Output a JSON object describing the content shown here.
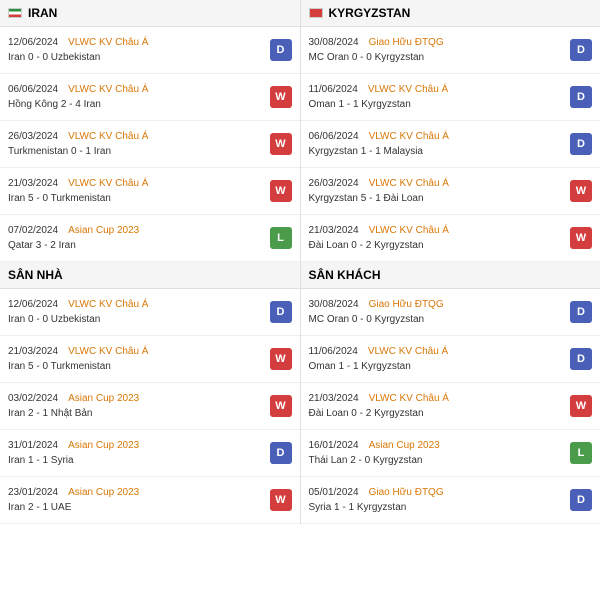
{
  "colors": {
    "d": "#4a5fb8",
    "w": "#d43d3d",
    "l": "#4a9b4a",
    "comp": "#d97706"
  },
  "badges": {
    "D": "D",
    "W": "W",
    "L": "L"
  },
  "flags": {
    "iran": {
      "bg": "linear-gradient(#2a8f3a 33%,#fff 33% 66%,#d43d3d 66%)"
    },
    "kyrgyzstan": {
      "bg": "#d43d3d"
    }
  },
  "columns": [
    {
      "sections": [
        {
          "title": "IRAN",
          "flag": "iran",
          "matches": [
            {
              "date": "12/06/2024",
              "comp": "VLWC KV Châu Á",
              "score": "Iran 0 - 0 Uzbekistan",
              "res": "D"
            },
            {
              "date": "06/06/2024",
              "comp": "VLWC KV Châu Á",
              "score": "Hồng Kông 2 - 4 Iran",
              "res": "W"
            },
            {
              "date": "26/03/2024",
              "comp": "VLWC KV Châu Á",
              "score": "Turkmenistan 0 - 1 Iran",
              "res": "W"
            },
            {
              "date": "21/03/2024",
              "comp": "VLWC KV Châu Á",
              "score": "Iran 5 - 0 Turkmenistan",
              "res": "W"
            },
            {
              "date": "07/02/2024",
              "comp": "Asian Cup 2023",
              "score": "Qatar 3 - 2 Iran",
              "res": "L"
            }
          ]
        },
        {
          "title": "SÂN NHÀ",
          "matches": [
            {
              "date": "12/06/2024",
              "comp": "VLWC KV Châu Á",
              "score": "Iran 0 - 0 Uzbekistan",
              "res": "D"
            },
            {
              "date": "21/03/2024",
              "comp": "VLWC KV Châu Á",
              "score": "Iran 5 - 0 Turkmenistan",
              "res": "W"
            },
            {
              "date": "03/02/2024",
              "comp": "Asian Cup 2023",
              "score": "Iran 2 - 1 Nhật Bản",
              "res": "W"
            },
            {
              "date": "31/01/2024",
              "comp": "Asian Cup 2023",
              "score": "Iran 1 - 1 Syria",
              "res": "D"
            },
            {
              "date": "23/01/2024",
              "comp": "Asian Cup 2023",
              "score": "Iran 2 - 1 UAE",
              "res": "W"
            }
          ]
        }
      ]
    },
    {
      "sections": [
        {
          "title": "KYRGYZSTAN",
          "flag": "kyrgyzstan",
          "matches": [
            {
              "date": "30/08/2024",
              "comp": "Giao Hữu ĐTQG",
              "score": "MC Oran 0 - 0 Kyrgyzstan",
              "res": "D"
            },
            {
              "date": "11/06/2024",
              "comp": "VLWC KV Châu Á",
              "score": "Oman 1 - 1 Kyrgyzstan",
              "res": "D"
            },
            {
              "date": "06/06/2024",
              "comp": "VLWC KV Châu Á",
              "score": "Kyrgyzstan 1 - 1 Malaysia",
              "res": "D"
            },
            {
              "date": "26/03/2024",
              "comp": "VLWC KV Châu Á",
              "score": "Kyrgyzstan 5 - 1 Đài Loan",
              "res": "W"
            },
            {
              "date": "21/03/2024",
              "comp": "VLWC KV Châu Á",
              "score": "Đài Loan 0 - 2 Kyrgyzstan",
              "res": "W"
            }
          ]
        },
        {
          "title": "SÂN KHÁCH",
          "matches": [
            {
              "date": "30/08/2024",
              "comp": "Giao Hữu ĐTQG",
              "score": "MC Oran 0 - 0 Kyrgyzstan",
              "res": "D"
            },
            {
              "date": "11/06/2024",
              "comp": "VLWC KV Châu Á",
              "score": "Oman 1 - 1 Kyrgyzstan",
              "res": "D"
            },
            {
              "date": "21/03/2024",
              "comp": "VLWC KV Châu Á",
              "score": "Đài Loan 0 - 2 Kyrgyzstan",
              "res": "W"
            },
            {
              "date": "16/01/2024",
              "comp": "Asian Cup 2023",
              "score": "Thái Lan 2 - 0 Kyrgyzstan",
              "res": "L"
            },
            {
              "date": "05/01/2024",
              "comp": "Giao Hữu ĐTQG",
              "score": "Syria 1 - 1 Kyrgyzstan",
              "res": "D"
            }
          ]
        }
      ]
    }
  ]
}
